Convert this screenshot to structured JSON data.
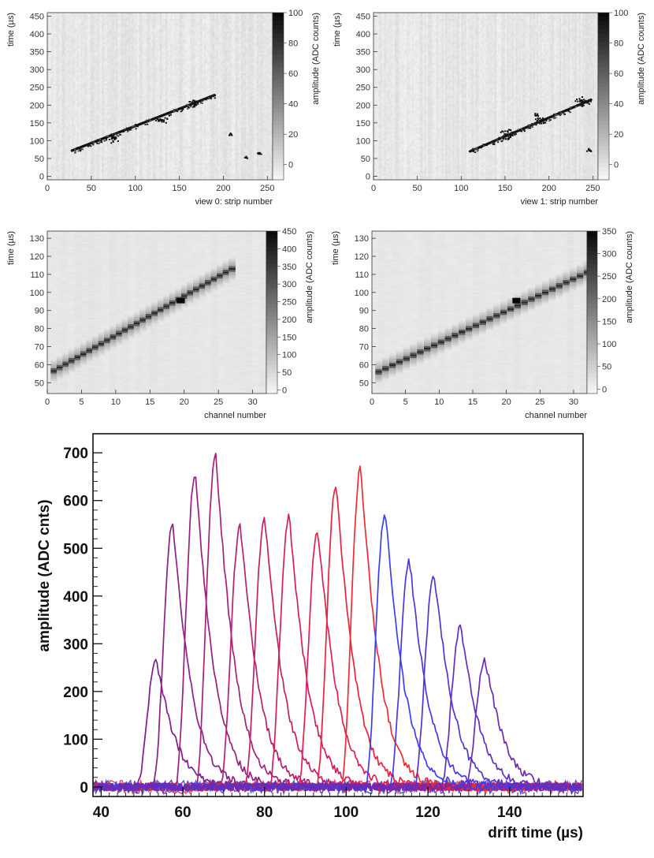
{
  "chart_data": [
    {
      "type": "heatmap",
      "xlabel": "view 0: strip number",
      "ylabel": "time (µs)",
      "zlabel": "amplitude (ADC counts)",
      "xlim": [
        0,
        256
      ],
      "ylim": [
        -10,
        460
      ],
      "zlim": [
        -10,
        100
      ],
      "xticks": [
        0,
        50,
        100,
        150,
        200,
        250
      ],
      "yticks": [
        0,
        50,
        100,
        150,
        200,
        250,
        300,
        350,
        400,
        450
      ],
      "zticks": [
        0,
        20,
        40,
        60,
        80,
        100
      ],
      "track": {
        "x_start": 28,
        "y_start": 72,
        "x_end": 190,
        "y_end": 228
      },
      "clusters": [
        {
          "x": 75,
          "y": 110,
          "r": 9
        },
        {
          "x": 130,
          "y": 160,
          "r": 7
        },
        {
          "x": 165,
          "y": 205,
          "r": 6
        },
        {
          "x": 240,
          "y": 65,
          "r": 3
        },
        {
          "x": 208,
          "y": 120,
          "r": 3
        },
        {
          "x": 225,
          "y": 55,
          "r": 2
        }
      ]
    },
    {
      "type": "heatmap",
      "xlabel": "view 1: strip number",
      "ylabel": "time (µs)",
      "zlabel": "amplitude (ADC counts)",
      "xlim": [
        0,
        256
      ],
      "ylim": [
        -10,
        460
      ],
      "zlim": [
        -10,
        100
      ],
      "xticks": [
        0,
        50,
        100,
        150,
        200,
        250
      ],
      "yticks": [
        0,
        50,
        100,
        150,
        200,
        250,
        300,
        350,
        400,
        450
      ],
      "zticks": [
        0,
        20,
        40,
        60,
        80,
        100
      ],
      "track": {
        "x_start": 110,
        "y_start": 70,
        "x_end": 248,
        "y_end": 215
      },
      "clusters": [
        {
          "x": 150,
          "y": 120,
          "r": 9
        },
        {
          "x": 190,
          "y": 160,
          "r": 7
        },
        {
          "x": 235,
          "y": 215,
          "r": 6
        },
        {
          "x": 245,
          "y": 75,
          "r": 3
        },
        {
          "x": 185,
          "y": 175,
          "r": 3
        }
      ]
    },
    {
      "type": "heatmap",
      "xlabel": "channel number",
      "ylabel": "time (µs)",
      "zlabel": "amplitude (ADC counts)",
      "xlim": [
        0,
        32
      ],
      "ylim": [
        44,
        134
      ],
      "zlim": [
        -10,
        450
      ],
      "xticks": [
        0,
        5,
        10,
        15,
        20,
        25,
        30
      ],
      "yticks": [
        50,
        60,
        70,
        80,
        90,
        100,
        110,
        120,
        130
      ],
      "zticks": [
        0,
        50,
        100,
        150,
        200,
        250,
        300,
        350,
        400,
        450
      ],
      "track": {
        "x_start": 1,
        "y_start": 56.5,
        "x_end": 27,
        "y_end": 113
      },
      "hotspot": {
        "x": 19.5,
        "y": 95.5
      }
    },
    {
      "type": "heatmap",
      "xlabel": "channel number",
      "ylabel": "time (µs)",
      "zlabel": "amplitude (ADC counts)",
      "xlim": [
        0,
        32
      ],
      "ylim": [
        44,
        134
      ],
      "zlim": [
        -10,
        350
      ],
      "xticks": [
        0,
        5,
        10,
        15,
        20,
        25,
        30
      ],
      "yticks": [
        50,
        60,
        70,
        80,
        90,
        100,
        110,
        120,
        130
      ],
      "zticks": [
        0,
        50,
        100,
        150,
        200,
        250,
        300,
        350
      ],
      "track": {
        "x_start": 1,
        "y_start": 56,
        "x_end": 32,
        "y_end": 111
      },
      "hotspot": {
        "x": 21.5,
        "y": 95.5
      }
    },
    {
      "type": "line",
      "xlabel": "drift time (µs)",
      "ylabel": "amplitude (ADC cnts)",
      "xlim": [
        38,
        158
      ],
      "ylim": [
        -20,
        740
      ],
      "xticks": [
        40,
        60,
        80,
        100,
        120,
        140
      ],
      "yticks": [
        0,
        100,
        200,
        300,
        400,
        500,
        600,
        700
      ],
      "series": [
        {
          "peak_time": 53.5,
          "peak_amplitude": 265,
          "color": "#7a1e8c"
        },
        {
          "peak_time": 57.5,
          "peak_amplitude": 552,
          "color": "#8a1f86"
        },
        {
          "peak_time": 63,
          "peak_amplitude": 655,
          "color": "#981f80"
        },
        {
          "peak_time": 68,
          "peak_amplitude": 698,
          "color": "#a6207a"
        },
        {
          "peak_time": 74,
          "peak_amplitude": 550,
          "color": "#b52070"
        },
        {
          "peak_time": 80,
          "peak_amplitude": 565,
          "color": "#c41f66"
        },
        {
          "peak_time": 86,
          "peak_amplitude": 566,
          "color": "#d31e5a"
        },
        {
          "peak_time": 93,
          "peak_amplitude": 540,
          "color": "#e01f4d"
        },
        {
          "peak_time": 97.5,
          "peak_amplitude": 632,
          "color": "#ea2240"
        },
        {
          "peak_time": 103.5,
          "peak_amplitude": 667,
          "color": "#f02a33"
        },
        {
          "peak_time": 109.5,
          "peak_amplitude": 575,
          "color": "#3b3ef0"
        },
        {
          "peak_time": 115.5,
          "peak_amplitude": 472,
          "color": "#4a37e0"
        },
        {
          "peak_time": 121.5,
          "peak_amplitude": 448,
          "color": "#5632cf"
        },
        {
          "peak_time": 128,
          "peak_amplitude": 335,
          "color": "#612fbf"
        },
        {
          "peak_time": 134,
          "peak_amplitude": 267,
          "color": "#6d2aab"
        }
      ],
      "baseline_colors": [
        "#2e3cf0",
        "#e83040",
        "#5a2bb0"
      ]
    }
  ]
}
